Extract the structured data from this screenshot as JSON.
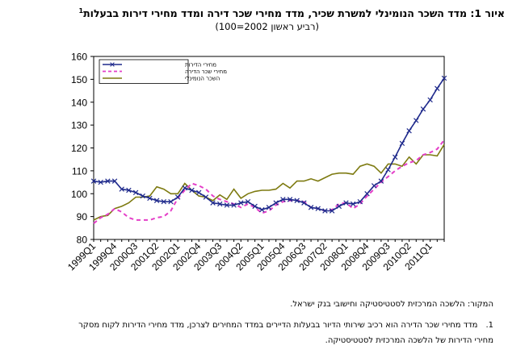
{
  "title": {
    "text": "איור 1: מדד השכר הנומינלי למשרת שכיר, מדד מחירי שכר דירה ומדד מחירי דירות בבעלות",
    "footnote_mark": "1"
  },
  "subtitle": "(רביע ראשון 2002=100)",
  "source": "המקור: הלשכה המרכזית לסטטיסטיקה וחישובי בנק ישראל.",
  "footnote": {
    "number": "1.",
    "text": "מדד מחירי שכר הדירה הוא רכיב שירותי הדיור בבעלות הדיירים במדד המחירים לצרכן, מדד מחירי הדירות לקוח מסקר מחירי הדירות של הלשכה המרכזית לסטטיסטיקה."
  },
  "chart_data": {
    "type": "line",
    "y_ticks": [
      80,
      90,
      100,
      110,
      120,
      130,
      140,
      150,
      160
    ],
    "ylim": [
      80,
      160
    ],
    "grid": false,
    "legend_position": "top-left",
    "x_tick_labels": [
      "1999Q1",
      "1999Q4",
      "2000Q3",
      "2001Q2",
      "2002Q1",
      "2002Q4",
      "2003Q3",
      "2004Q2",
      "2005Q1",
      "2005Q4",
      "2006Q3",
      "2007Q2",
      "2008Q1",
      "2008Q4",
      "2009Q3",
      "2010Q2",
      "2011Q1"
    ],
    "x": [
      "1999Q1",
      "1999Q2",
      "1999Q3",
      "1999Q4",
      "2000Q1",
      "2000Q2",
      "2000Q3",
      "2000Q4",
      "2001Q1",
      "2001Q2",
      "2001Q3",
      "2001Q4",
      "2002Q1",
      "2002Q2",
      "2002Q3",
      "2002Q4",
      "2003Q1",
      "2003Q2",
      "2003Q3",
      "2003Q4",
      "2004Q1",
      "2004Q2",
      "2004Q3",
      "2004Q4",
      "2005Q1",
      "2005Q2",
      "2005Q3",
      "2005Q4",
      "2006Q1",
      "2006Q2",
      "2006Q3",
      "2006Q4",
      "2007Q1",
      "2007Q2",
      "2007Q3",
      "2007Q4",
      "2008Q1",
      "2008Q2",
      "2008Q3",
      "2008Q4",
      "2009Q1",
      "2009Q2",
      "2009Q3",
      "2009Q4",
      "2010Q1",
      "2010Q2",
      "2010Q3",
      "2010Q4",
      "2011Q1",
      "2011Q2",
      "2011Q3"
    ],
    "series": [
      {
        "name": "מחירי הדירות",
        "color": "#1f2a8c",
        "style": "solid-markers",
        "values": [
          105.5,
          105,
          105.5,
          105.5,
          102,
          101.5,
          100.5,
          99,
          98,
          97,
          96.5,
          96.5,
          98.5,
          102.5,
          101.5,
          100.5,
          98.5,
          96,
          95.5,
          95,
          95,
          96,
          96.5,
          94.5,
          93,
          94,
          96,
          97.5,
          97.5,
          97,
          96,
          94,
          93.5,
          92.5,
          92.5,
          94.5,
          96,
          95.5,
          96.5,
          100,
          103.5,
          105.5,
          110.5,
          116,
          122,
          127.5,
          132,
          137,
          141,
          146,
          150.5
        ]
      },
      {
        "name": "מחירי שכר הדירה",
        "color": "#e43fc8",
        "style": "dashed",
        "values": [
          87,
          89.5,
          91,
          93.5,
          92,
          89.5,
          88.5,
          88.5,
          88.5,
          89.5,
          90,
          92.5,
          98,
          101.5,
          104.5,
          103.5,
          102,
          99,
          97.5,
          96.5,
          95.5,
          94,
          95.5,
          94,
          91.5,
          92.5,
          95,
          96.5,
          97,
          97,
          96.5,
          94,
          93.5,
          92.5,
          93,
          95.5,
          96,
          93.5,
          95.5,
          99,
          102,
          105,
          107.5,
          110,
          112,
          113.5,
          114.5,
          117,
          118,
          119.5,
          123.5
        ]
      },
      {
        "name": "השכר הנומינלי",
        "color": "#7d7a10",
        "style": "solid",
        "values": [
          88.5,
          90,
          90.5,
          93.5,
          94.5,
          96,
          98.5,
          98.5,
          99,
          103,
          102,
          100,
          100,
          104.5,
          101.5,
          99,
          98.5,
          97,
          99.5,
          97.5,
          102,
          98,
          100,
          101,
          101.5,
          101.5,
          102,
          104.5,
          102.5,
          105.5,
          105.5,
          106.5,
          105.5,
          107,
          108.5,
          109,
          109,
          108.5,
          112,
          113,
          112,
          109,
          113,
          113,
          112,
          116,
          113,
          117,
          117,
          116.5,
          121.5
        ]
      }
    ]
  }
}
